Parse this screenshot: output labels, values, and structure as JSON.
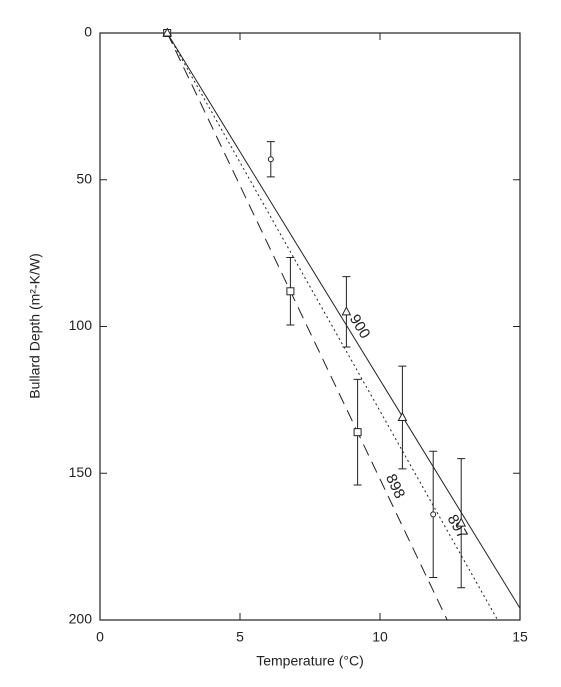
{
  "chart_data": {
    "type": "scatter",
    "xlabel": "Temperature (°C)",
    "ylabel": "Bullard Depth (m²-K/W)",
    "xlim": [
      0,
      15
    ],
    "xticks": [
      0,
      5,
      10,
      15
    ],
    "ylim": [
      0,
      200
    ],
    "yticks": [
      0,
      50,
      100,
      150,
      200
    ],
    "y_inverted": true,
    "series": [
      {
        "name": "897",
        "marker": "circle",
        "dash": "2,3",
        "color": "#222",
        "x": [
          2.4,
          6.1,
          11.9
        ],
        "values": [
          0,
          43,
          164
        ],
        "errors": [
          0,
          6,
          21.5
        ],
        "fit_x": [
          2.4,
          14.2
        ],
        "fit_y": [
          0,
          200
        ]
      },
      {
        "name": "898",
        "marker": "square",
        "dash": "12,7",
        "color": "#222",
        "x": [
          2.4,
          6.8,
          9.2
        ],
        "values": [
          0,
          88,
          136
        ],
        "errors": [
          0,
          11.5,
          18
        ],
        "fit_x": [
          2.4,
          12.4
        ],
        "fit_y": [
          0,
          200
        ]
      },
      {
        "name": "900",
        "marker": "triangle",
        "dash": "none",
        "color": "#222",
        "x": [
          2.4,
          8.8,
          10.8,
          12.9
        ],
        "values": [
          0,
          95,
          131,
          167
        ],
        "errors": [
          0,
          12,
          17.5,
          22
        ],
        "fit_x": [
          2.4,
          15
        ],
        "fit_y": [
          0,
          196
        ]
      }
    ]
  }
}
